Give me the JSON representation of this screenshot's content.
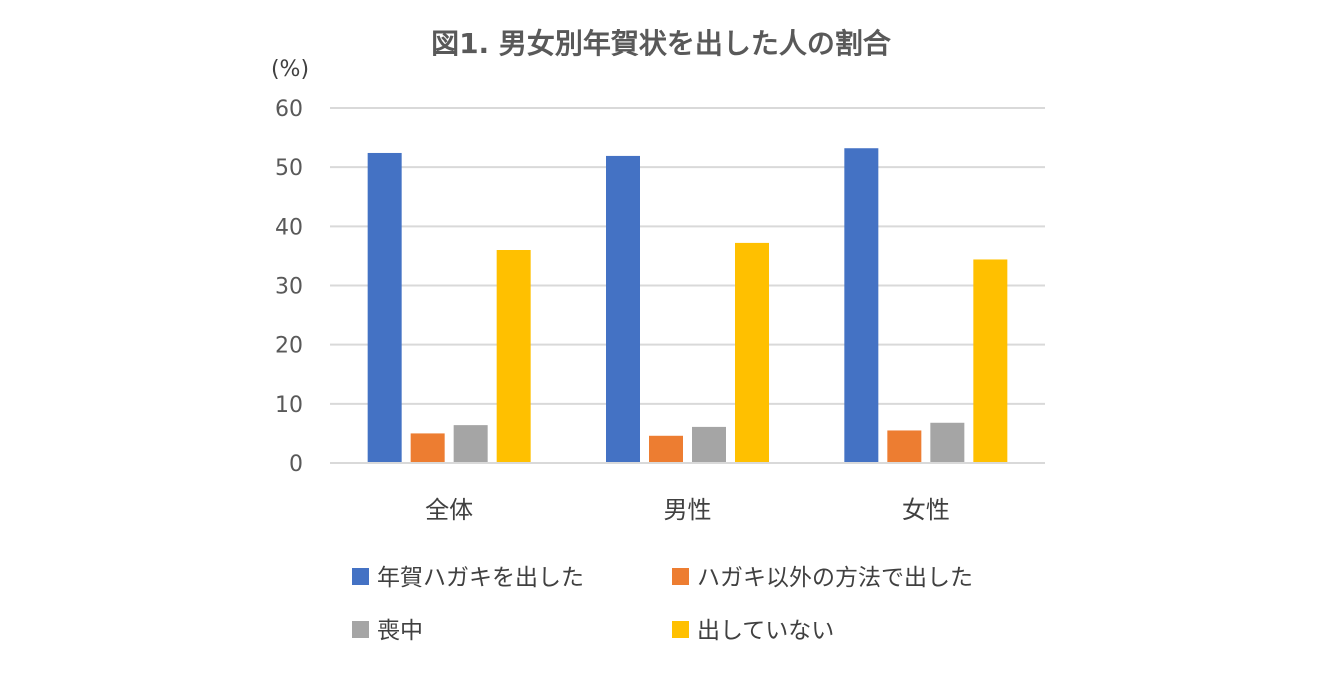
{
  "chart_data": {
    "type": "bar",
    "title": "図1. 男女別年賀状を出した人の割合",
    "unit_label": "(%)",
    "categories": [
      "全体",
      "男性",
      "女性"
    ],
    "series": [
      {
        "name": "年賀ハガキを出した",
        "color": "#4472C4",
        "values": [
          52.4,
          51.9,
          53.2
        ]
      },
      {
        "name": "ハガキ以外の方法で出した",
        "color": "#ED7D31",
        "values": [
          5.0,
          4.6,
          5.5
        ]
      },
      {
        "name": "喪中",
        "color": "#A5A5A5",
        "values": [
          6.4,
          6.1,
          6.8
        ]
      },
      {
        "name": "出していない",
        "color": "#FFC000",
        "values": [
          36.0,
          37.2,
          34.4
        ]
      }
    ],
    "ylim": [
      0,
      60
    ],
    "yticks": [
      "0",
      "10",
      "20",
      "30",
      "40",
      "50",
      "60"
    ],
    "grid": true,
    "legend_position": "bottom"
  }
}
